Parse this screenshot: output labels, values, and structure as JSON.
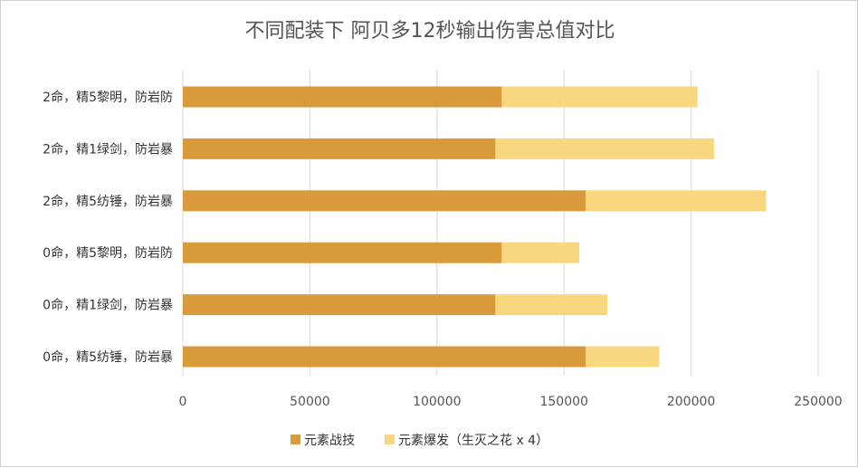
{
  "chart_data": {
    "type": "bar",
    "orientation": "horizontal",
    "stacked": true,
    "title": "不同配装下 阿贝多12秒输出伤害总值对比",
    "categories": [
      "2命，精5黎明，防岩防",
      "2命，精1绿剑，防岩暴",
      "2命，精5纺锤，防岩暴",
      "0命，精5黎明，防岩防",
      "0命，精1绿剑，防岩暴",
      "0命，精5纺锤，防岩暴"
    ],
    "series": [
      {
        "name": "元素战技",
        "color": "#D89A3A",
        "values": [
          125500,
          123000,
          158500,
          125500,
          123000,
          158500
        ]
      },
      {
        "name": "元素爆发（生灭之花 x 4）",
        "color": "#F8D77E",
        "values": [
          77000,
          86000,
          71000,
          30500,
          44000,
          29000
        ]
      }
    ],
    "xlim": [
      0,
      250000
    ],
    "xticks": [
      0,
      50000,
      100000,
      150000,
      200000,
      250000
    ],
    "xtick_labels": [
      "0",
      "50000",
      "100000",
      "150000",
      "200000",
      "250000"
    ],
    "grid": "vertical",
    "legend_position": "bottom"
  }
}
